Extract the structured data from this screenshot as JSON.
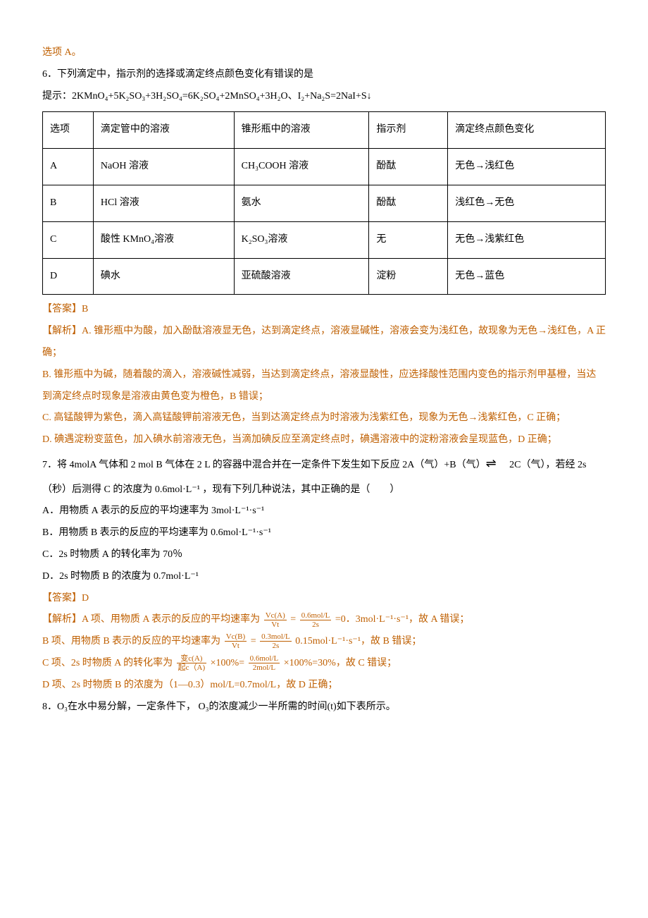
{
  "top_fragment": "选项 A。",
  "q6": {
    "stem": "6．下列滴定中，指示剂的选择或滴定终点颜色变化有错误的是",
    "hint": "提示：2KMnO₄+5K₂SO₃+3H₂SO₄=6K₂SO₄+2MnSO₄+3H₂O、I₂+Na₂S=2NaI+S↓",
    "table": {
      "headers": [
        "选项",
        "滴定管中的溶液",
        "锥形瓶中的溶液",
        "指示剂",
        "滴定终点颜色变化"
      ],
      "rows": [
        [
          "A",
          "NaOH 溶液",
          "CH₃COOH 溶液",
          "酚酞",
          "无色→浅红色"
        ],
        [
          "B",
          "HCl 溶液",
          "氨水",
          "酚酞",
          "浅红色→无色"
        ],
        [
          "C",
          "酸性 KMnO₄溶液",
          "K₂SO₃溶液",
          "无",
          "无色→浅紫红色"
        ],
        [
          "D",
          "碘水",
          "亚硫酸溶液",
          "淀粉",
          "无色→蓝色"
        ]
      ]
    },
    "answer_label": "【答案】B",
    "explain_title": "【解析】",
    "explain_A": "A. 锥形瓶中为酸，加入酚酞溶液显无色，达到滴定终点，溶液显碱性，溶液会变为浅红色，故现象为无色→浅红色，A 正确；",
    "explain_B": "B. 锥形瓶中为碱，随着酸的滴入，溶液碱性减弱，当达到滴定终点，溶液显酸性，应选择酸性范围内变色的指示剂甲基橙，当达到滴定终点时现象是溶液由黄色变为橙色，B 错误；",
    "explain_C": "C. 高锰酸钾为紫色，滴入高锰酸钾前溶液无色，当到达滴定终点为时溶液为浅紫红色，现象为无色→浅紫红色，C 正确；",
    "explain_D": "D. 碘遇淀粉变蓝色，加入碘水前溶液无色，当滴加碘反应至滴定终点时，碘遇溶液中的淀粉溶液会呈现蓝色，D 正确；"
  },
  "q7": {
    "stem_1": "7．将 4molA 气体和 2 mol B 气体在 2 L 的容器中混合并在一定条件下发生如下反应 2A（气）+B（气）",
    "stem_2": "2C（气），若经 2s（秒）后测得 C 的浓度为 0.6mol·L⁻¹ ，现有下列几种说法，其中正确的是（　　）",
    "opt_A": "A．用物质 A 表示的反应的平均速率为 3mol·L⁻¹·s⁻¹",
    "opt_B": "B．用物质 B 表示的反应的平均速率为 0.6mol·L⁻¹·s⁻¹",
    "opt_C": "C．2s 时物质 A 的转化率为 70％",
    "opt_D": "D．2s 时物质 B 的浓度为 0.7mol·L⁻¹",
    "answer_label": "【答案】D",
    "explain_title": "【解析】",
    "explain_A_1": "A 项、用物质 A 表示的反应的平均速率为",
    "explain_A_frac1_num": "Vc(A)",
    "explain_A_frac1_den": "Vt",
    "explain_A_eq": "=",
    "explain_A_frac2_num": "0.6mol/L",
    "explain_A_frac2_den": "2s",
    "explain_A_2": "=0．3mol·L⁻¹·s⁻¹，故 A 错误；",
    "explain_B_1": "B 项、用物质 B 表示的反应的平均速率为",
    "explain_B_frac1_num": "Vc(B)",
    "explain_B_frac1_den": "Vt",
    "explain_B_eq": "=",
    "explain_B_frac2_num": "0.3mol/L",
    "explain_B_frac2_den": "2s",
    "explain_B_2": " 0.15mol·L⁻¹·s⁻¹，故 B 错误；",
    "explain_C_1": "C 项、2s 时物质 A 的转化率为 ",
    "explain_C_frac1_num": "变c(A)",
    "explain_C_frac1_den": "起c（A)",
    "explain_C_mid": "×100%=",
    "explain_C_frac2_num": "0.6mol/L",
    "explain_C_frac2_den": "2mol/L",
    "explain_C_2": "×100%=30%，故 C 错误；",
    "explain_D": "D 项、2s 时物质 B 的浓度为（1—0.3）mol/L=0.7mol/L，故 D 正确；"
  },
  "q8": {
    "stem": "8．O₃在水中易分解，一定条件下， O₃的浓度减少一半所需的时间(t)如下表所示。"
  },
  "colors": {
    "brown": "#bf5f00",
    "text": "#000000",
    "background": "#ffffff"
  }
}
